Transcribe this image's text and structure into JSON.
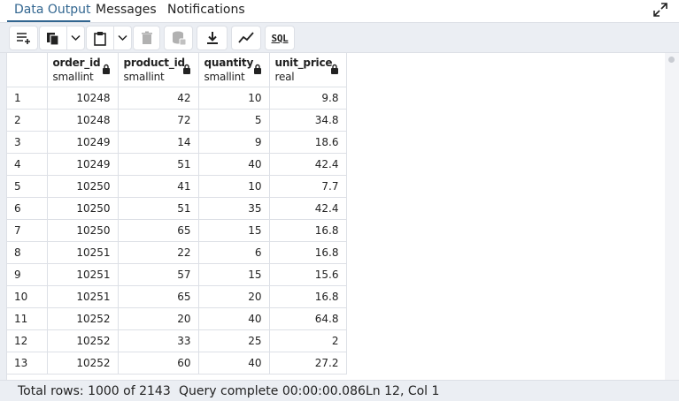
{
  "tabs": [
    {
      "label": "Data Output",
      "active": true
    },
    {
      "label": "Messages",
      "active": false
    },
    {
      "label": "Notifications",
      "active": false
    }
  ],
  "toolbar": {
    "icons": [
      "add-row-icon",
      "copy-icon",
      "chevron-down-icon",
      "paste-icon",
      "chevron-down-icon",
      "delete-icon",
      "save-data-icon",
      "download-icon",
      "graph-icon"
    ],
    "sql_label": "SQL"
  },
  "grid": {
    "columns": [
      {
        "name": "order_id",
        "type": "smallint"
      },
      {
        "name": "product_id",
        "type": "smallint"
      },
      {
        "name": "quantity",
        "type": "smallint"
      },
      {
        "name": "unit_price",
        "type": "real"
      }
    ],
    "rows": [
      [
        "1",
        "10248",
        "42",
        "10",
        "9.8"
      ],
      [
        "2",
        "10248",
        "72",
        "5",
        "34.8"
      ],
      [
        "3",
        "10249",
        "14",
        "9",
        "18.6"
      ],
      [
        "4",
        "10249",
        "51",
        "40",
        "42.4"
      ],
      [
        "5",
        "10250",
        "41",
        "10",
        "7.7"
      ],
      [
        "6",
        "10250",
        "51",
        "35",
        "42.4"
      ],
      [
        "7",
        "10250",
        "65",
        "15",
        "16.8"
      ],
      [
        "8",
        "10251",
        "22",
        "6",
        "16.8"
      ],
      [
        "9",
        "10251",
        "57",
        "15",
        "15.6"
      ],
      [
        "10",
        "10251",
        "65",
        "20",
        "16.8"
      ],
      [
        "11",
        "10252",
        "20",
        "40",
        "64.8"
      ],
      [
        "12",
        "10252",
        "33",
        "25",
        "2"
      ],
      [
        "13",
        "10252",
        "60",
        "40",
        "27.2"
      ]
    ]
  },
  "status": {
    "total_rows": "Total rows: 1000 of 2143",
    "query": "Query complete 00:00:00.086",
    "cursor": "Ln 12, Col 1"
  },
  "colors": {
    "accent": "#326690",
    "border": "#dde0e6",
    "toolbar_bg": "#ebeef3"
  }
}
